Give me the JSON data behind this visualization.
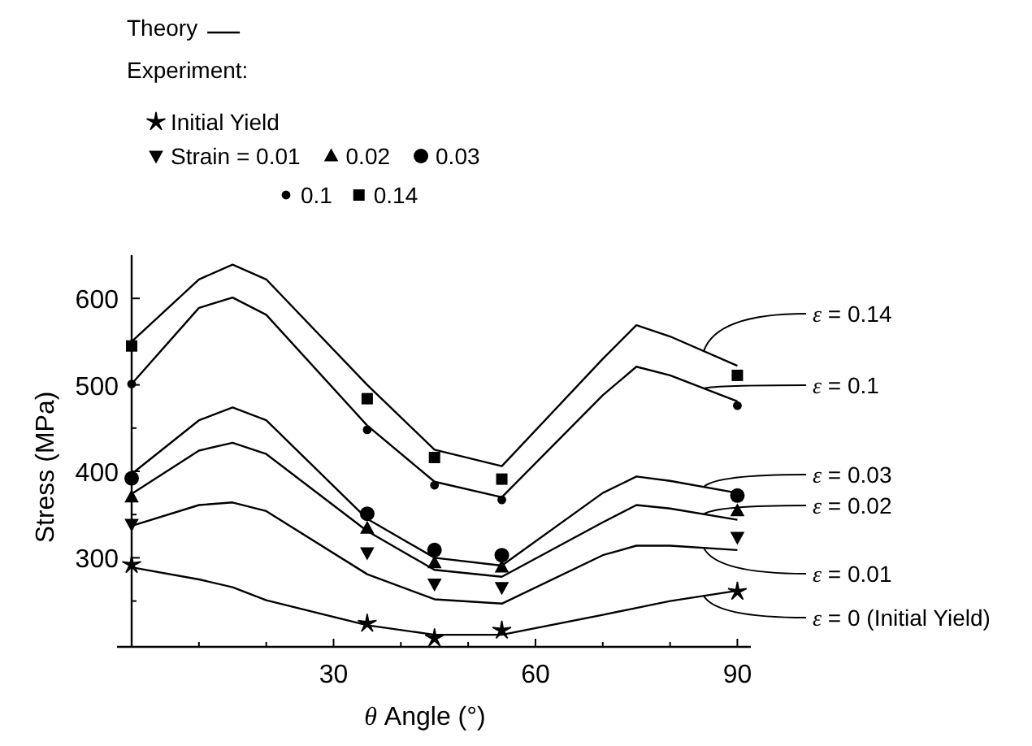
{
  "chart_data": {
    "type": "line",
    "xlabel": "θ Angle (°)",
    "ylabel": "Stress (MPa)",
    "annotations": [
      "Theory"
    ],
    "legend_title": "Experiment:",
    "legend": "top",
    "grid": false,
    "xlim": [
      0,
      92
    ],
    "ylim": [
      197,
      650
    ],
    "xticks": [
      {
        "value": 10,
        "label": null
      },
      {
        "value": 20,
        "label": null
      },
      30,
      {
        "value": 40,
        "label": null
      },
      {
        "value": 50,
        "label": null
      },
      60,
      {
        "value": 70,
        "label": null
      },
      {
        "value": 80,
        "label": null
      },
      90
    ],
    "yticks": [
      {
        "value": 250,
        "label": null
      },
      300,
      {
        "value": 350,
        "label": null
      },
      400,
      {
        "value": 450,
        "label": null
      },
      500,
      {
        "value": 550,
        "label": null
      },
      600
    ],
    "x": [
      0,
      10,
      15,
      20,
      35,
      45,
      55,
      70,
      75,
      80,
      90
    ],
    "series": [
      {
        "name": "ε = 0.14",
        "color": "#000000",
        "marker": "none",
        "values": [
          550,
          622,
          639,
          622,
          500,
          425,
          406,
          530,
          569,
          556,
          522
        ]
      },
      {
        "name": "ε = 0.1",
        "color": "#000000",
        "marker": "none",
        "values": [
          501,
          589,
          601,
          581,
          453,
          388,
          370,
          488,
          521,
          511,
          481
        ]
      },
      {
        "name": "ε = 0.03",
        "color": "#000000",
        "marker": "none",
        "values": [
          397,
          459,
          474,
          459,
          345,
          300,
          291,
          375,
          394,
          389,
          375
        ]
      },
      {
        "name": "ε = 0.02",
        "color": "#000000",
        "marker": "none",
        "values": [
          374,
          424,
          433,
          420,
          331,
          286,
          278,
          341,
          361,
          357,
          344
        ]
      },
      {
        "name": "ε = 0.01",
        "color": "#000000",
        "marker": "none",
        "values": [
          337,
          361,
          364,
          354,
          281,
          252,
          247,
          303,
          314,
          314,
          309
        ]
      },
      {
        "name": "ε = 0 (Initial Yield)",
        "color": "#000000",
        "marker": "none",
        "values": [
          289,
          275,
          266,
          251,
          222,
          211,
          211,
          234,
          242,
          250,
          262
        ]
      },
      {
        "name": "Initial Yield",
        "type": "scatter",
        "color": "#000000",
        "marker": "star",
        "x": [
          0,
          35,
          45,
          55,
          90
        ],
        "values": [
          292,
          224,
          207,
          216,
          261
        ]
      },
      {
        "name": "Strain = 0.01",
        "type": "scatter",
        "color": "#000000",
        "marker": "triangle-down",
        "x": [
          0,
          35,
          45,
          55,
          90
        ],
        "values": [
          339,
          306,
          270,
          266,
          324
        ]
      },
      {
        "name": "0.02",
        "type": "scatter",
        "color": "#000000",
        "marker": "triangle",
        "x": [
          0,
          35,
          45,
          55,
          90
        ],
        "values": [
          370,
          334,
          294,
          289,
          354
        ]
      },
      {
        "name": "0.03",
        "type": "scatter",
        "color": "#000000",
        "marker": "circle",
        "x": [
          0,
          35,
          45,
          55,
          90
        ],
        "values": [
          392,
          351,
          309,
          303,
          372
        ]
      },
      {
        "name": "0.1",
        "type": "scatter",
        "color": "#000000",
        "marker": "circle",
        "x": [
          0,
          35,
          45,
          55,
          90
        ],
        "values": [
          501,
          448,
          384,
          367,
          476
        ]
      },
      {
        "name": "0.14",
        "type": "scatter",
        "color": "#000000",
        "marker": "square",
        "x": [
          0,
          35,
          45,
          55,
          90
        ],
        "values": [
          545,
          484,
          416,
          391,
          511
        ]
      }
    ]
  }
}
